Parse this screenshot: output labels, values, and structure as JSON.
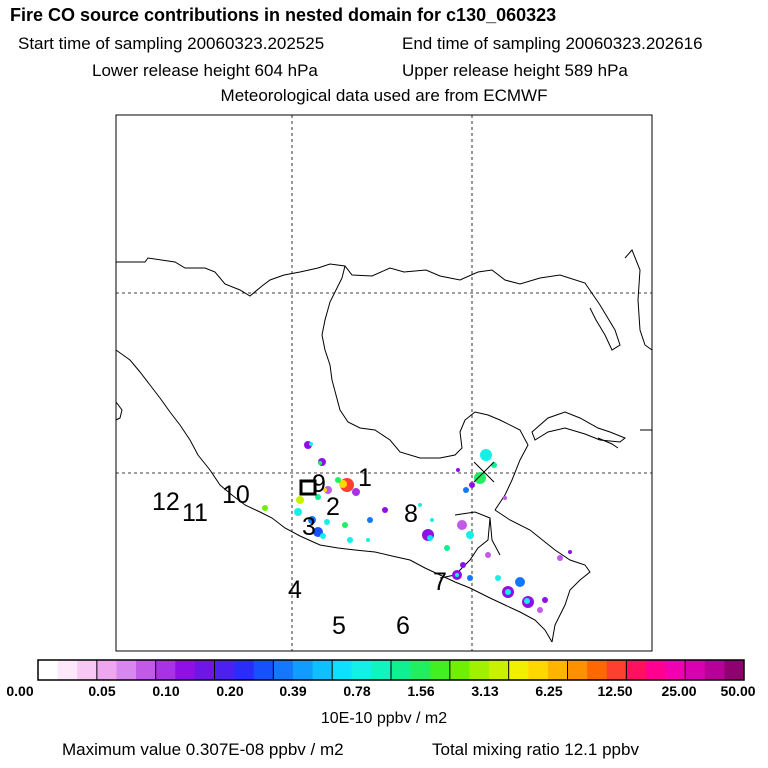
{
  "header": {
    "title": "Fire CO source contributions in nested domain for c130_060323",
    "start_time": "Start time of sampling 20060323.202525",
    "end_time": "End time of sampling 20060323.202616",
    "lower_height": "Lower release height  604 hPa",
    "upper_height": "Upper release height  589 hPa",
    "met_data": "Meteorological data used are from ECMWF"
  },
  "map": {
    "labels": [
      "1",
      "2",
      "3",
      "4",
      "5",
      "6",
      "7",
      "8",
      "9",
      "10",
      "11",
      "12"
    ]
  },
  "colorbar": {
    "tick_labels": [
      "0.00",
      "0.05",
      "0.10",
      "0.20",
      "0.39",
      "0.78",
      "1.56",
      "3.13",
      "6.25",
      "12.50",
      "25.00",
      "50.00"
    ],
    "units": "10E-10 ppbv / m2",
    "colors": [
      "#ffffff",
      "#fde8fb",
      "#f7c8f3",
      "#eea6ef",
      "#d887ee",
      "#c15ae8",
      "#a833e6",
      "#8f10e6",
      "#6e16e8",
      "#4c20f0",
      "#2a2dfa",
      "#1650ff",
      "#1478ff",
      "#0f9dff",
      "#0dc0ff",
      "#10e0ff",
      "#14f0e8",
      "#10f5c0",
      "#10f090",
      "#20f060",
      "#40f020",
      "#70f000",
      "#a0f000",
      "#c8f000",
      "#f0f000",
      "#ffd800",
      "#ffb400",
      "#ff9000",
      "#ff6800",
      "#ff4030",
      "#ff1060",
      "#ff0090",
      "#f000b0",
      "#d800b0",
      "#b80098",
      "#900070"
    ]
  },
  "footer": {
    "max_value": "Maximum value  0.307E-08 ppbv / m2",
    "total_mixing": "Total mixing ratio       12.1 ppbv"
  }
}
